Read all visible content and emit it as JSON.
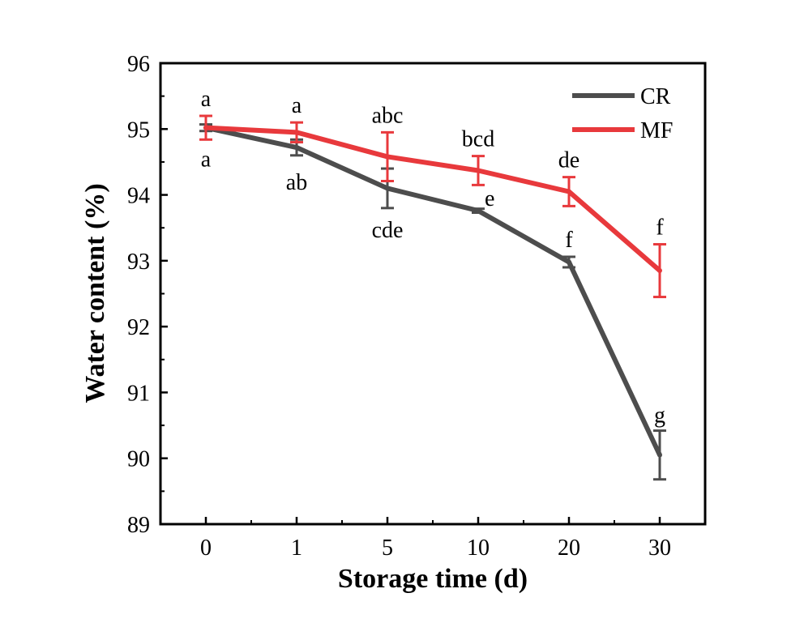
{
  "chart_data": {
    "type": "line",
    "categories": [
      "0",
      "1",
      "5",
      "10",
      "20",
      "30"
    ],
    "xlabel": "Storage time (d)",
    "ylabel": "Water content (%)",
    "ylim": [
      89,
      96
    ],
    "yticks": [
      "89",
      "90",
      "91",
      "92",
      "93",
      "94",
      "95",
      "96"
    ],
    "legend_position": "top-right",
    "series": [
      {
        "name": "CR",
        "color": "#4d4d4d",
        "values": [
          95.02,
          94.72,
          94.1,
          93.76,
          92.98,
          90.05
        ],
        "errors": [
          0.05,
          0.12,
          0.3,
          0.03,
          0.08,
          0.37
        ],
        "labels": [
          "a",
          "ab",
          "cde",
          "e",
          "f",
          "g"
        ]
      },
      {
        "name": "MF",
        "color": "#e8393c",
        "values": [
          95.02,
          94.95,
          94.58,
          94.37,
          94.05,
          92.85
        ],
        "errors": [
          0.18,
          0.15,
          0.37,
          0.22,
          0.22,
          0.4
        ],
        "labels": [
          "a",
          "a",
          "abc",
          "bcd",
          "de",
          "f"
        ]
      }
    ]
  }
}
